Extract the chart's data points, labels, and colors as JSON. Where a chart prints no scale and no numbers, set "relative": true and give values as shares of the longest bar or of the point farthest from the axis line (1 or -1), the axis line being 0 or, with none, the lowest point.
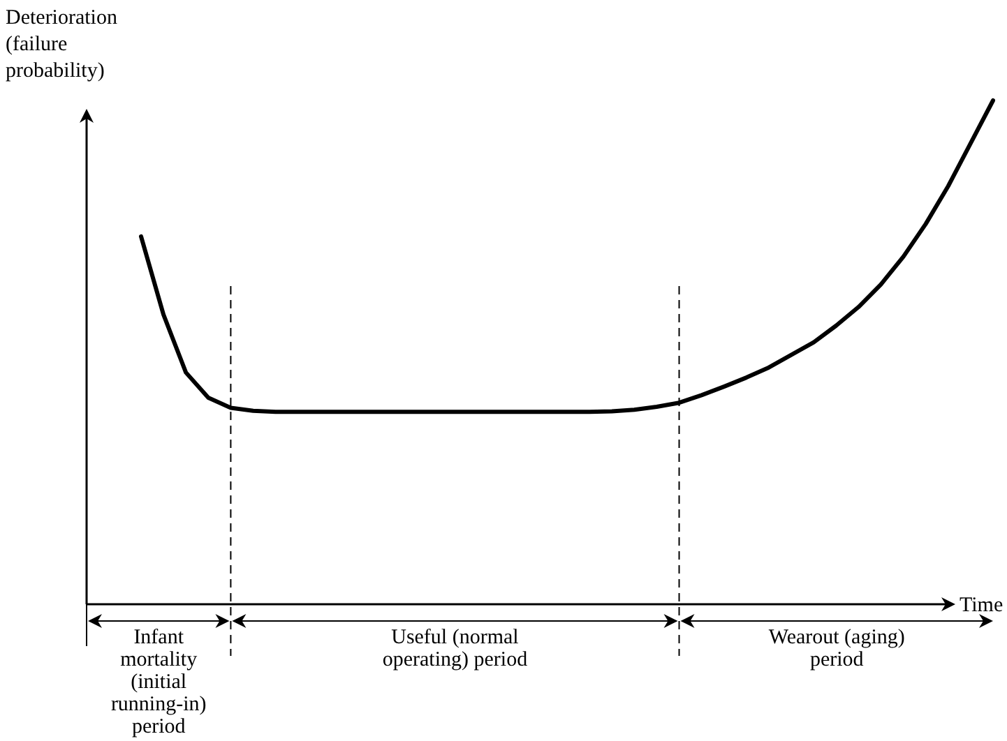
{
  "chart_data": {
    "type": "line",
    "relative": true,
    "xlabel": "Time",
    "ylabel": "Deterioration (failure probability)",
    "categories": [
      null,
      null,
      null,
      null,
      null,
      null,
      null,
      null,
      null,
      null,
      null,
      null,
      null,
      null,
      null,
      null,
      null,
      null,
      null,
      null,
      null,
      null,
      null,
      null,
      null,
      null,
      null,
      null,
      null,
      null,
      null,
      null,
      null,
      null,
      null,
      null,
      null,
      null,
      null
    ],
    "line_style": "solid",
    "series": [
      {
        "color": "#000000",
        "values": [
          0.73,
          0.575,
          0.46,
          0.41,
          0.39,
          0.384,
          0.382,
          0.382,
          0.382,
          0.382,
          0.382,
          0.382,
          0.382,
          0.382,
          0.382,
          0.382,
          0.382,
          0.382,
          0.382,
          0.382,
          0.382,
          0.383,
          0.386,
          0.392,
          0.4,
          0.415,
          0.432,
          0.45,
          0.47,
          0.495,
          0.52,
          0.553,
          0.59,
          0.635,
          0.69,
          0.755,
          0.83,
          0.915,
          1
        ]
      }
    ],
    "annotations": [
      "Infant mortality (initial running-in) period",
      "Useful (normal operating) period",
      "Wearout (aging) period"
    ]
  }
}
